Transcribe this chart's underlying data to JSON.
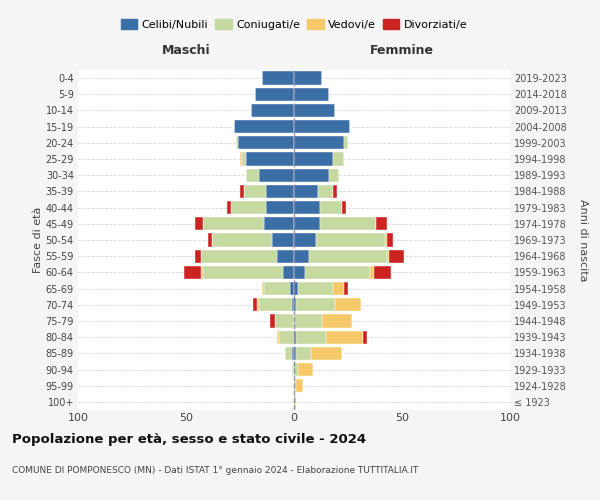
{
  "age_groups": [
    "100+",
    "95-99",
    "90-94",
    "85-89",
    "80-84",
    "75-79",
    "70-74",
    "65-69",
    "60-64",
    "55-59",
    "50-54",
    "45-49",
    "40-44",
    "35-39",
    "30-34",
    "25-29",
    "20-24",
    "15-19",
    "10-14",
    "5-9",
    "0-4"
  ],
  "birth_years": [
    "≤ 1923",
    "1924-1928",
    "1929-1933",
    "1934-1938",
    "1939-1943",
    "1944-1948",
    "1949-1953",
    "1954-1958",
    "1959-1963",
    "1964-1968",
    "1969-1973",
    "1974-1978",
    "1979-1983",
    "1984-1988",
    "1989-1993",
    "1994-1998",
    "1999-2003",
    "2004-2008",
    "2009-2013",
    "2014-2018",
    "2019-2023"
  ],
  "maschi": {
    "celibi": [
      0,
      0,
      0,
      1,
      0,
      0,
      1,
      2,
      5,
      8,
      10,
      14,
      13,
      13,
      16,
      22,
      26,
      28,
      20,
      18,
      15
    ],
    "coniugati": [
      0,
      0,
      1,
      3,
      7,
      9,
      15,
      12,
      37,
      35,
      28,
      28,
      16,
      10,
      6,
      2,
      1,
      0,
      0,
      0,
      0
    ],
    "vedovi": [
      0,
      0,
      0,
      0,
      1,
      0,
      1,
      1,
      1,
      0,
      0,
      0,
      0,
      0,
      0,
      1,
      0,
      0,
      0,
      0,
      0
    ],
    "divorziati": [
      0,
      0,
      0,
      0,
      0,
      2,
      2,
      0,
      8,
      3,
      2,
      4,
      2,
      2,
      0,
      0,
      0,
      0,
      0,
      0,
      0
    ]
  },
  "femmine": {
    "nubili": [
      0,
      0,
      0,
      1,
      1,
      0,
      1,
      2,
      5,
      7,
      10,
      12,
      12,
      11,
      16,
      18,
      23,
      26,
      19,
      16,
      13
    ],
    "coniugate": [
      0,
      1,
      2,
      7,
      14,
      13,
      18,
      16,
      30,
      36,
      32,
      26,
      10,
      7,
      5,
      5,
      2,
      0,
      0,
      0,
      0
    ],
    "vedove": [
      1,
      3,
      7,
      14,
      17,
      14,
      12,
      5,
      2,
      1,
      1,
      0,
      0,
      0,
      0,
      0,
      0,
      0,
      0,
      0,
      0
    ],
    "divorziate": [
      0,
      0,
      0,
      0,
      2,
      0,
      0,
      2,
      8,
      7,
      3,
      5,
      2,
      2,
      0,
      0,
      0,
      0,
      0,
      0,
      0
    ]
  },
  "colors": {
    "celibi_nubili": "#3a6ea5",
    "coniugati": "#c5d9a0",
    "vedovi": "#f5c96a",
    "divorziati": "#cc2222"
  },
  "xlim": 100,
  "title": "Popolazione per età, sesso e stato civile - 2024",
  "subtitle": "COMUNE DI POMPONESCO (MN) - Dati ISTAT 1° gennaio 2024 - Elaborazione TUTTITALIA.IT",
  "ylabel_left": "Fasce di età",
  "ylabel_right": "Anni di nascita",
  "xlabel_left": "Maschi",
  "xlabel_right": "Femmine",
  "bg_color": "#f5f5f5",
  "plot_bg": "#ffffff",
  "grid_color": "#cccccc"
}
